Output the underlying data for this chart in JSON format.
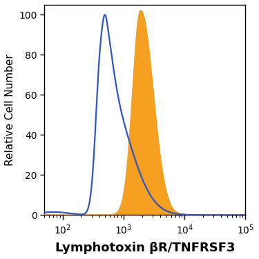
{
  "title": "",
  "xlabel": "Lymphotoxin βR/TNFRSF3",
  "ylabel": "Relative Cell Number",
  "xlim_log": [
    50,
    100000
  ],
  "ylim": [
    0,
    105
  ],
  "yticks": [
    0,
    20,
    40,
    60,
    80,
    100
  ],
  "blue_color": "#2f55c5",
  "orange_color": "#f5a020",
  "orange_fill_color": "#f5a020",
  "background_color": "#ffffff",
  "xlabel_fontsize": 13,
  "ylabel_fontsize": 11,
  "tick_fontsize": 10,
  "linewidth": 1.6
}
